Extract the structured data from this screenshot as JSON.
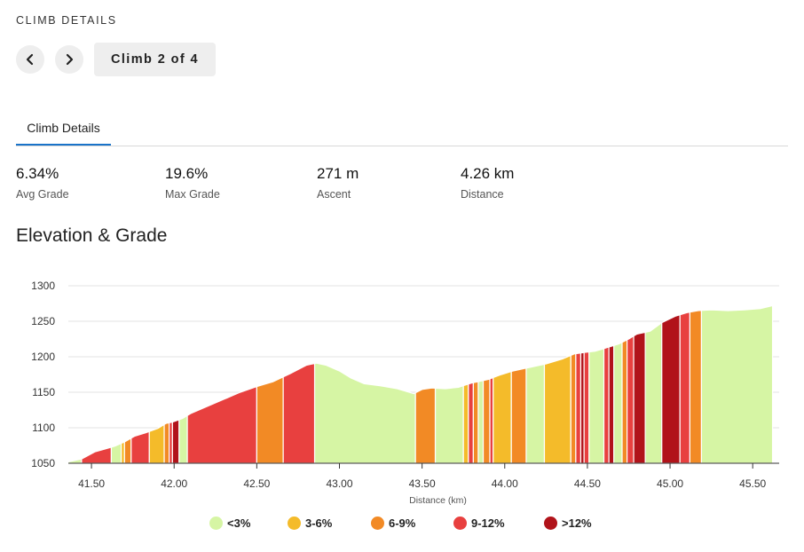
{
  "header": {
    "section_label": "CLIMB DETAILS",
    "climb_counter": "Climb 2 of 4"
  },
  "tabs": [
    {
      "label": "Climb Details",
      "active": true
    }
  ],
  "stats": [
    {
      "value": "6.34%",
      "label": "Avg Grade"
    },
    {
      "value": "19.6%",
      "label": "Max Grade"
    },
    {
      "value": "271 m",
      "label": "Ascent"
    },
    {
      "value": "4.26 km",
      "label": "Distance"
    }
  ],
  "chart_title": "Elevation & Grade",
  "colors": {
    "lt3": "#d6f5a4",
    "3-6": "#f4bb2a",
    "6-9": "#f28a25",
    "9-12": "#e8403f",
    "gt12": "#b1131a",
    "active_tab": "#1a73c9"
  },
  "chart_data": {
    "type": "area",
    "title": "Elevation & Grade",
    "xlabel": "Distance (km)",
    "ylabel": "",
    "xlim": [
      41.36,
      45.66
    ],
    "ylim": [
      1050,
      1300
    ],
    "xticks": [
      "41.50",
      "42.00",
      "42.50",
      "43.00",
      "43.50",
      "44.00",
      "44.50",
      "45.00",
      "45.50"
    ],
    "yticks": [
      "1050",
      "1100",
      "1150",
      "1200",
      "1250",
      "1300"
    ],
    "grid": true,
    "legend_position": "bottom",
    "legend": [
      {
        "key": "lt3",
        "label": "<3%"
      },
      {
        "key": "3-6",
        "label": "3-6%"
      },
      {
        "key": "6-9",
        "label": "6-9%"
      },
      {
        "key": "9-12",
        "label": "9-12%"
      },
      {
        "key": "gt12",
        "label": ">12%"
      }
    ],
    "profile": [
      [
        41.36,
        1052
      ],
      [
        41.44,
        1056
      ],
      [
        41.52,
        1066
      ],
      [
        41.58,
        1070
      ],
      [
        41.64,
        1074
      ],
      [
        41.7,
        1080
      ],
      [
        41.76,
        1088
      ],
      [
        41.83,
        1093
      ],
      [
        41.9,
        1099
      ],
      [
        41.95,
        1106
      ],
      [
        41.99,
        1108
      ],
      [
        42.05,
        1113
      ],
      [
        42.1,
        1120
      ],
      [
        42.2,
        1130
      ],
      [
        42.3,
        1140
      ],
      [
        42.4,
        1150
      ],
      [
        42.5,
        1158
      ],
      [
        42.6,
        1165
      ],
      [
        42.7,
        1176
      ],
      [
        42.8,
        1188
      ],
      [
        42.86,
        1191
      ],
      [
        42.92,
        1188
      ],
      [
        43.0,
        1180
      ],
      [
        43.07,
        1170
      ],
      [
        43.15,
        1162
      ],
      [
        43.25,
        1159
      ],
      [
        43.35,
        1155
      ],
      [
        43.45,
        1148
      ],
      [
        43.5,
        1154
      ],
      [
        43.56,
        1156
      ],
      [
        43.64,
        1155
      ],
      [
        43.72,
        1157
      ],
      [
        43.8,
        1163
      ],
      [
        43.9,
        1168
      ],
      [
        43.98,
        1175
      ],
      [
        44.05,
        1180
      ],
      [
        44.15,
        1185
      ],
      [
        44.25,
        1190
      ],
      [
        44.35,
        1197
      ],
      [
        44.42,
        1204
      ],
      [
        44.48,
        1206
      ],
      [
        44.55,
        1208
      ],
      [
        44.62,
        1213
      ],
      [
        44.69,
        1218
      ],
      [
        44.75,
        1225
      ],
      [
        44.8,
        1232
      ],
      [
        44.88,
        1236
      ],
      [
        44.95,
        1248
      ],
      [
        45.03,
        1257
      ],
      [
        45.1,
        1262
      ],
      [
        45.17,
        1265
      ],
      [
        45.25,
        1266
      ],
      [
        45.35,
        1265
      ],
      [
        45.45,
        1266
      ],
      [
        45.55,
        1268
      ],
      [
        45.62,
        1272
      ]
    ],
    "segments": [
      {
        "start": 41.36,
        "end": 41.44,
        "grade": "lt3"
      },
      {
        "start": 41.44,
        "end": 41.62,
        "grade": "9-12"
      },
      {
        "start": 41.62,
        "end": 41.68,
        "grade": "lt3"
      },
      {
        "start": 41.68,
        "end": 41.7,
        "grade": "3-6"
      },
      {
        "start": 41.7,
        "end": 41.74,
        "grade": "6-9"
      },
      {
        "start": 41.74,
        "end": 41.85,
        "grade": "9-12"
      },
      {
        "start": 41.85,
        "end": 41.94,
        "grade": "3-6"
      },
      {
        "start": 41.94,
        "end": 41.97,
        "grade": "6-9"
      },
      {
        "start": 41.97,
        "end": 41.99,
        "grade": "9-12"
      },
      {
        "start": 41.99,
        "end": 42.03,
        "grade": "gt12"
      },
      {
        "start": 42.03,
        "end": 42.08,
        "grade": "lt3"
      },
      {
        "start": 42.08,
        "end": 42.5,
        "grade": "9-12"
      },
      {
        "start": 42.5,
        "end": 42.66,
        "grade": "6-9"
      },
      {
        "start": 42.66,
        "end": 42.85,
        "grade": "9-12"
      },
      {
        "start": 42.85,
        "end": 43.46,
        "grade": "lt3"
      },
      {
        "start": 43.46,
        "end": 43.58,
        "grade": "6-9"
      },
      {
        "start": 43.58,
        "end": 43.75,
        "grade": "lt3"
      },
      {
        "start": 43.75,
        "end": 43.78,
        "grade": "3-6"
      },
      {
        "start": 43.78,
        "end": 43.81,
        "grade": "9-12"
      },
      {
        "start": 43.81,
        "end": 43.84,
        "grade": "6-9"
      },
      {
        "start": 43.84,
        "end": 43.87,
        "grade": "lt3"
      },
      {
        "start": 43.87,
        "end": 43.91,
        "grade": "6-9"
      },
      {
        "start": 43.91,
        "end": 43.93,
        "grade": "9-12"
      },
      {
        "start": 43.93,
        "end": 44.04,
        "grade": "3-6"
      },
      {
        "start": 44.04,
        "end": 44.13,
        "grade": "6-9"
      },
      {
        "start": 44.13,
        "end": 44.24,
        "grade": "lt3"
      },
      {
        "start": 44.24,
        "end": 44.4,
        "grade": "3-6"
      },
      {
        "start": 44.4,
        "end": 44.43,
        "grade": "6-9"
      },
      {
        "start": 44.43,
        "end": 44.46,
        "grade": "9-12"
      },
      {
        "start": 44.46,
        "end": 44.48,
        "grade": "gt12"
      },
      {
        "start": 44.48,
        "end": 44.51,
        "grade": "9-12"
      },
      {
        "start": 44.51,
        "end": 44.6,
        "grade": "lt3"
      },
      {
        "start": 44.6,
        "end": 44.63,
        "grade": "9-12"
      },
      {
        "start": 44.63,
        "end": 44.66,
        "grade": "gt12"
      },
      {
        "start": 44.66,
        "end": 44.71,
        "grade": "lt3"
      },
      {
        "start": 44.71,
        "end": 44.74,
        "grade": "6-9"
      },
      {
        "start": 44.74,
        "end": 44.78,
        "grade": "9-12"
      },
      {
        "start": 44.78,
        "end": 44.85,
        "grade": "gt12"
      },
      {
        "start": 44.85,
        "end": 44.95,
        "grade": "lt3"
      },
      {
        "start": 44.95,
        "end": 45.06,
        "grade": "gt12"
      },
      {
        "start": 45.06,
        "end": 45.12,
        "grade": "9-12"
      },
      {
        "start": 45.12,
        "end": 45.19,
        "grade": "6-9"
      },
      {
        "start": 45.19,
        "end": 45.62,
        "grade": "lt3"
      }
    ]
  }
}
